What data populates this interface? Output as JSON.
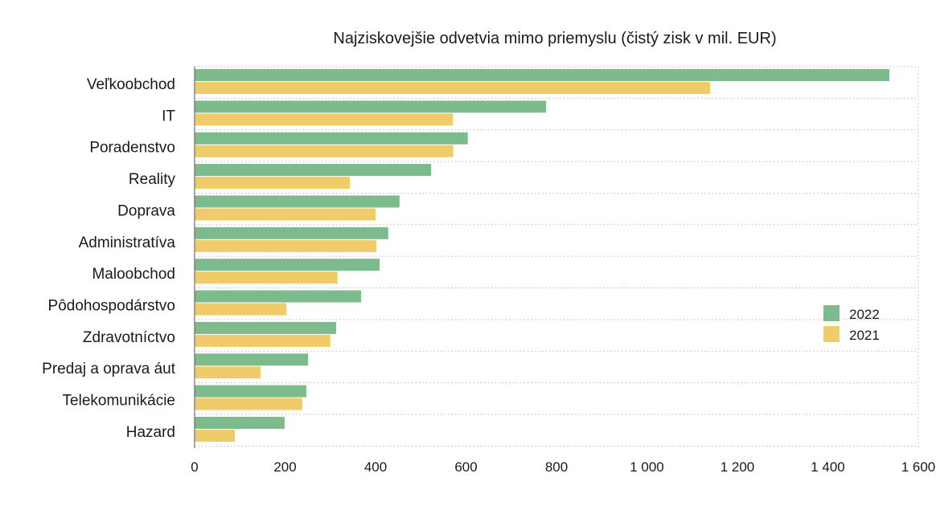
{
  "chart_data": {
    "type": "bar",
    "orientation": "horizontal",
    "title": "Najziskovejšie odvetvia mimo priemyslu (čistý zisk v mil. EUR)",
    "categories": [
      "Veľkoobchod",
      "IT",
      "Poradenstvo",
      "Reality",
      "Doprava",
      "Administratíva",
      "Maloobchod",
      "Pôdohospodárstvo",
      "Zdravotníctvo",
      "Predaj a oprava áut",
      "Telekomunikácie",
      "Hazard"
    ],
    "series": [
      {
        "name": "2022",
        "color": "#7dbb8d",
        "values": [
          1536,
          777,
          604,
          523,
          453,
          428,
          409,
          368,
          313,
          251,
          247,
          199
        ]
      },
      {
        "name": "2021",
        "color": "#f0cb6a",
        "values": [
          1140,
          571,
          572,
          343,
          400,
          402,
          316,
          203,
          300,
          146,
          238,
          89
        ]
      }
    ],
    "xlim": [
      0,
      1600
    ],
    "xticks": [
      0,
      200,
      400,
      600,
      800,
      1000,
      1200,
      1400,
      1600
    ],
    "xtick_labels": [
      "0",
      "200",
      "400",
      "600",
      "800",
      "1 000",
      "1 200",
      "1 400",
      "1 600"
    ],
    "grid": "horizontal dotted",
    "legend_position": "right"
  }
}
